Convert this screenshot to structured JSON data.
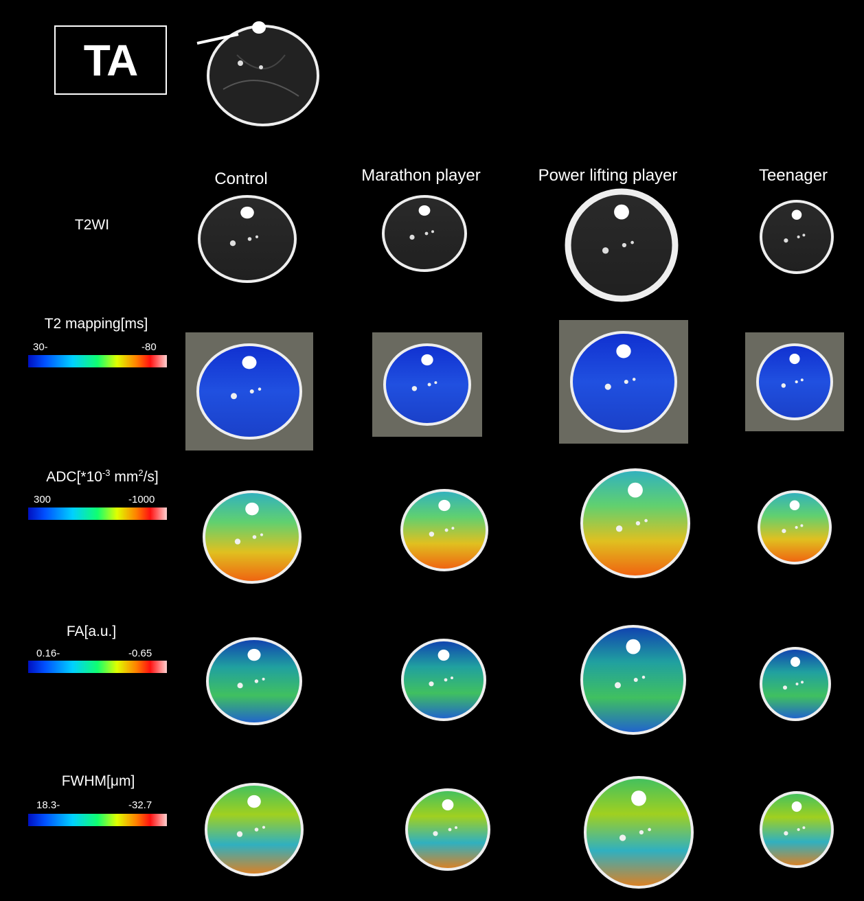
{
  "header": {
    "label": "TA"
  },
  "columns": [
    {
      "label": "Control"
    },
    {
      "label": "Marathon player"
    },
    {
      "label": "Power lifting player"
    },
    {
      "label": "Teenager"
    }
  ],
  "rows": [
    {
      "label": "T2WI"
    },
    {
      "label": "T2 mapping[ms]",
      "scale_min": "30-",
      "scale_max": "-80"
    },
    {
      "label_main": "ADC[*10",
      "label_sup1": "-3",
      "label_mid": " mm",
      "label_sup2": "2",
      "label_end": "/s]",
      "scale_min": "300",
      "scale_max": "-1000"
    },
    {
      "label": "FA[a.u.]",
      "scale_min": "0.16-",
      "scale_max": "-0.65"
    },
    {
      "label": "FWHM[μm]",
      "scale_min": "18.3-",
      "scale_max": "-32.7"
    }
  ],
  "colormap": [
    "#0010c0",
    "#0050ff",
    "#00d0ff",
    "#10ff70",
    "#e0ff00",
    "#ff8000",
    "#ff1010",
    "#ffd0d0"
  ]
}
